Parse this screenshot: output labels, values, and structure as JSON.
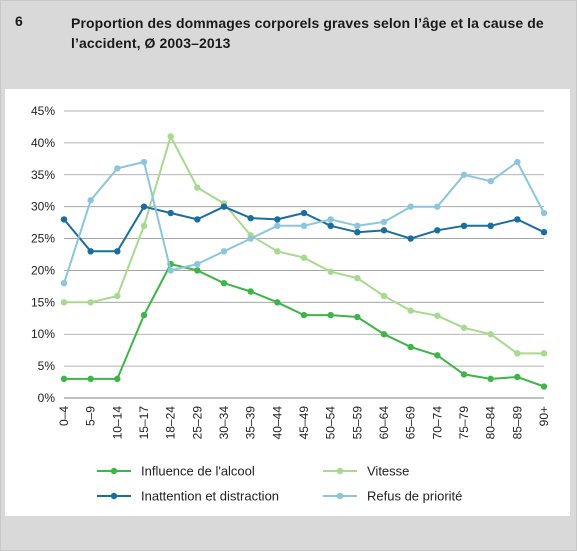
{
  "header": {
    "number": "6",
    "title": "Proportion des dommages corporels graves selon l’âge et la cause de l’accident, Ø 2003–2013"
  },
  "colors": {
    "alcool": "#3fb449",
    "vitesse": "#a7d98f",
    "inattention": "#1a6e9e",
    "priorite": "#8cc6dd",
    "grid": "#9a9a9a",
    "frame_bg": "#d9d9d9"
  },
  "chart_data": {
    "type": "line",
    "categories": [
      "0–4",
      "5–9",
      "10–14",
      "15–17",
      "18–24",
      "25–29",
      "30–34",
      "35–39",
      "40–44",
      "45–49",
      "50–54",
      "55–59",
      "60–64",
      "65–69",
      "70–74",
      "75–79",
      "80–84",
      "85–89",
      "90+"
    ],
    "ylim": [
      0,
      45
    ],
    "yticks": [
      0,
      5,
      10,
      15,
      20,
      25,
      30,
      35,
      40,
      45
    ],
    "ytick_labels": [
      "0%",
      "5%",
      "10%",
      "15%",
      "20%",
      "25%",
      "30%",
      "35%",
      "40%",
      "45%"
    ],
    "grid": "horizontal",
    "legend_position": "bottom",
    "series": [
      {
        "name": "Influence de l'alcool",
        "color": "#3fb449",
        "values": [
          3,
          3,
          3,
          13,
          21,
          20,
          18,
          16.7,
          15,
          13,
          13,
          12.7,
          10,
          8,
          6.7,
          3.7,
          3,
          3.3,
          1.8
        ]
      },
      {
        "name": "Vitesse",
        "color": "#a7d98f",
        "values": [
          15,
          15,
          16,
          27,
          41,
          33,
          30.5,
          25.5,
          23,
          22,
          19.8,
          18.8,
          16,
          13.7,
          12.9,
          11,
          10,
          7,
          7
        ]
      },
      {
        "name": "Inattention et distraction",
        "color": "#1a6e9e",
        "values": [
          28,
          23,
          23,
          30,
          29,
          28,
          30,
          28.2,
          28,
          29,
          27,
          26,
          26.3,
          25,
          26.3,
          27,
          27,
          28,
          26
        ]
      },
      {
        "name": "Refus de priorité",
        "color": "#8cc6dd",
        "values": [
          18,
          31,
          36,
          37,
          20,
          21,
          23,
          25,
          27,
          27,
          28,
          27,
          27.6,
          30,
          30,
          35,
          34,
          37,
          29
        ]
      }
    ]
  }
}
